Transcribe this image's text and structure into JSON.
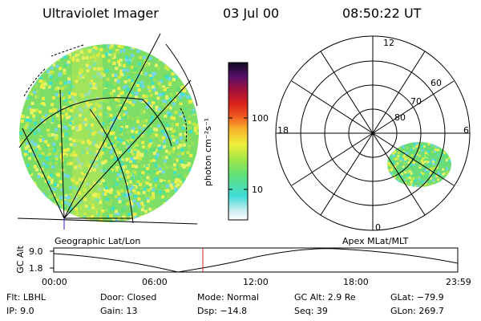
{
  "header": {
    "instrument": "Ultraviolet Imager",
    "date": "03 Jul 00",
    "time": "08:50:22 UT"
  },
  "left_panel": {
    "label": "Geographic Lat/Lon"
  },
  "right_panel": {
    "label": "Apex MLat/MLT",
    "mlt_labels": [
      "12",
      "18",
      "6",
      "0"
    ],
    "mlat_labels": [
      "60",
      "70",
      "80"
    ]
  },
  "colorbar": {
    "unit_label": "photon cm⁻²s⁻¹",
    "tick_labels": [
      "100",
      "10"
    ]
  },
  "altitude_plot": {
    "ylabel": "GC Alt",
    "y_ticks": [
      "9.0",
      "1.8"
    ],
    "x_ticks": [
      "00:00",
      "06:00",
      "12:00",
      "18:00",
      "23:59"
    ],
    "current_time_fraction": 0.369
  },
  "footer": {
    "row1": {
      "filter": "Flt: LBHL",
      "door": "Door: Closed",
      "mode": "Mode: Normal",
      "gc_alt": "GC Alt: 2.9 Re",
      "glat": "GLat: −79.9"
    },
    "row2": {
      "ip": "IP:  9.0",
      "gain": "Gain: 13",
      "dsp": "Dsp:  −14.8",
      "seq": "Seq: 39",
      "glon": "GLon: 269.7"
    }
  },
  "colors": {
    "speckle": [
      "#5ee07a",
      "#3fe2c8",
      "#f0ef4a",
      "#c8ea48",
      "#99e25a",
      "#e8f36c",
      "#74d6e8"
    ],
    "current_time_marker": "#cc2222",
    "axis_marker": "#2222cc"
  }
}
